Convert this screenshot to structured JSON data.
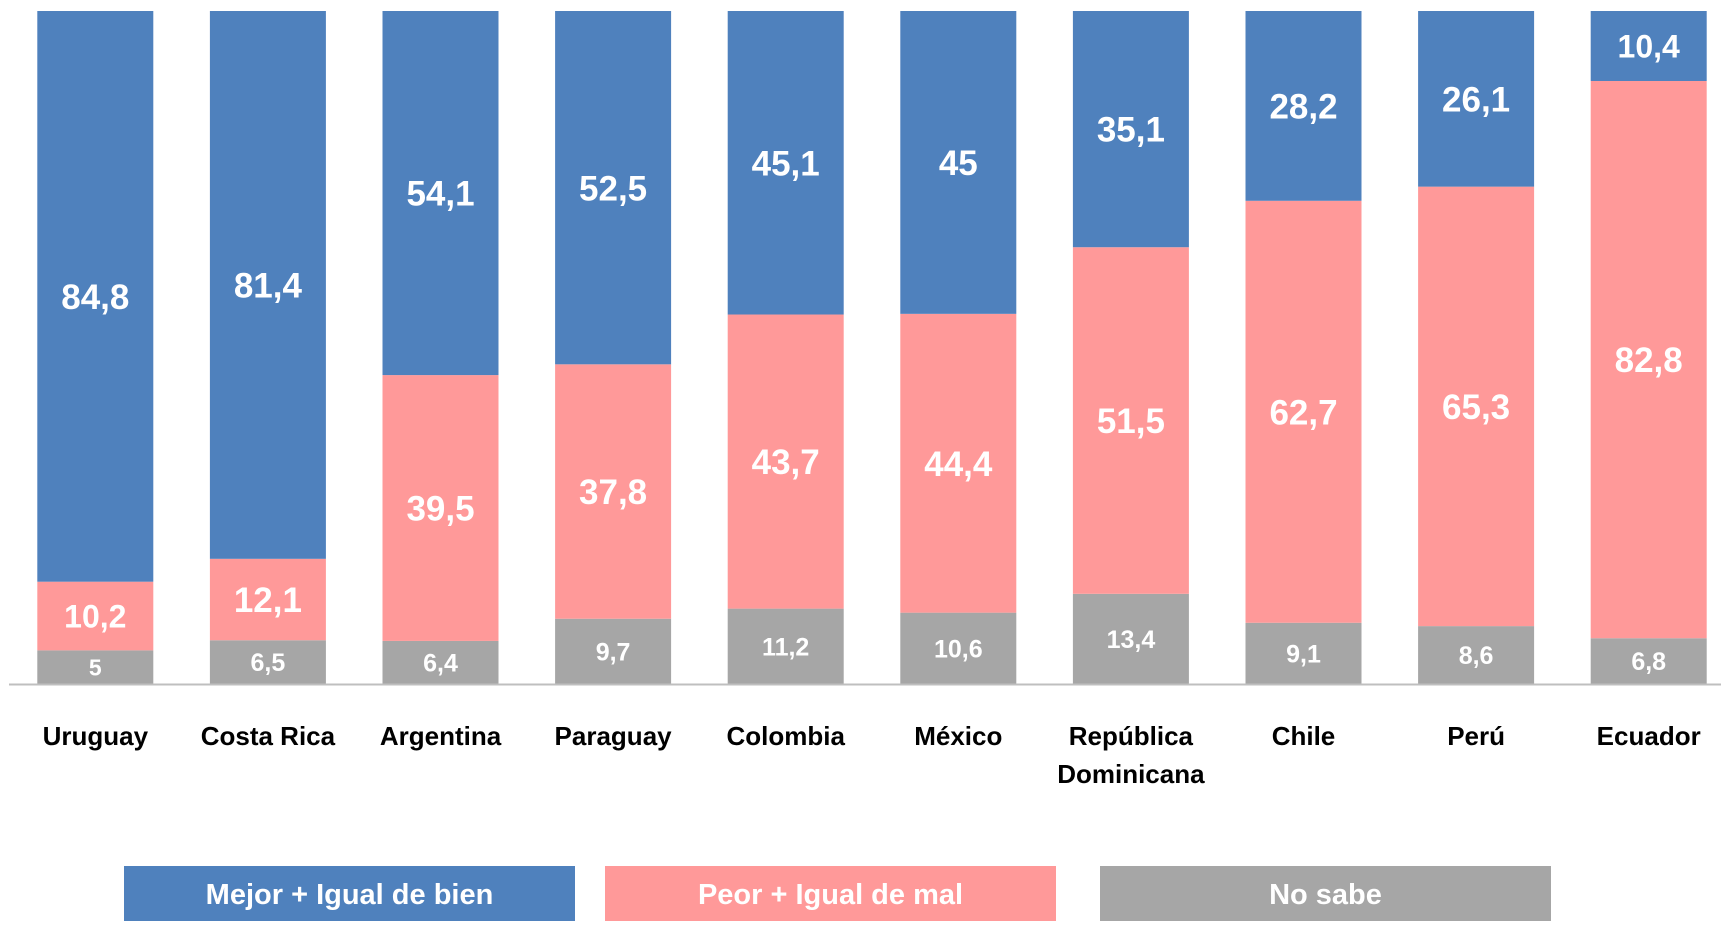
{
  "chart_data": {
    "type": "bar",
    "stacked": true,
    "normalized_to_percent": true,
    "categories": [
      "Uruguay",
      "Costa Rica",
      "Argentina",
      "Paraguay",
      "Colombia",
      "México",
      [
        "República",
        "Dominicana"
      ],
      "Chile",
      "Perú",
      "Ecuador"
    ],
    "series": [
      {
        "name": "No sabe",
        "color": "#A6A6A6",
        "values": [
          5,
          6.5,
          6.4,
          9.7,
          11.2,
          10.6,
          13.4,
          9.1,
          8.6,
          6.8
        ],
        "labels": [
          "5",
          "6,5",
          "6,4",
          "9,7",
          "11,2",
          "10,6",
          "13,4",
          "9,1",
          "8,6",
          "6,8"
        ]
      },
      {
        "name": "Peor + Igual de mal",
        "color": "#FF9999",
        "values": [
          10.2,
          12.1,
          39.5,
          37.8,
          43.7,
          44.4,
          51.5,
          62.7,
          65.3,
          82.8
        ],
        "labels": [
          "10,2",
          "12,1",
          "39,5",
          "37,8",
          "43,7",
          "44,4",
          "51,5",
          "62,7",
          "65,3",
          "82,8"
        ]
      },
      {
        "name": "Mejor + Igual de bien",
        "color": "#4F81BD",
        "values": [
          84.8,
          81.4,
          54.1,
          52.5,
          45.1,
          45,
          35.1,
          28.2,
          26.1,
          10.4
        ],
        "labels": [
          "84,8",
          "81,4",
          "54,1",
          "52,5",
          "45,1",
          "45",
          "35,1",
          "28,2",
          "26,1",
          "10,4"
        ]
      }
    ],
    "legend": {
      "position": "bottom",
      "order": [
        "Mejor + Igual de bien",
        "Peor + Igual de mal",
        "No sabe"
      ]
    },
    "ylim": [
      0,
      100
    ],
    "grid": false
  }
}
